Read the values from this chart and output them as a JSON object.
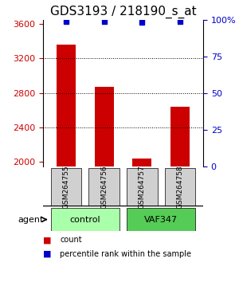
{
  "title": "GDS3193 / 218190_s_at",
  "categories": [
    "GSM264755",
    "GSM264756",
    "GSM264757",
    "GSM264758"
  ],
  "bar_values": [
    3360,
    2870,
    2040,
    2640
  ],
  "percentile_values": [
    99,
    99,
    98,
    99
  ],
  "ylim_left": [
    1950,
    3650
  ],
  "ylim_right": [
    0,
    100
  ],
  "yticks_left": [
    2000,
    2400,
    2800,
    3200,
    3600
  ],
  "yticks_right": [
    0,
    25,
    50,
    75,
    100
  ],
  "bar_color": "#cc0000",
  "percentile_color": "#0000cc",
  "grid_color": "#000000",
  "bg_color": "#ffffff",
  "groups": [
    {
      "label": "control",
      "indices": [
        0,
        1
      ],
      "color": "#aaffaa"
    },
    {
      "label": "VAF347",
      "indices": [
        2,
        3
      ],
      "color": "#55cc55"
    }
  ],
  "agent_label": "agent",
  "legend_count_label": "count",
  "legend_pct_label": "percentile rank within the sample",
  "title_fontsize": 11,
  "tick_fontsize": 8,
  "label_fontsize": 8
}
